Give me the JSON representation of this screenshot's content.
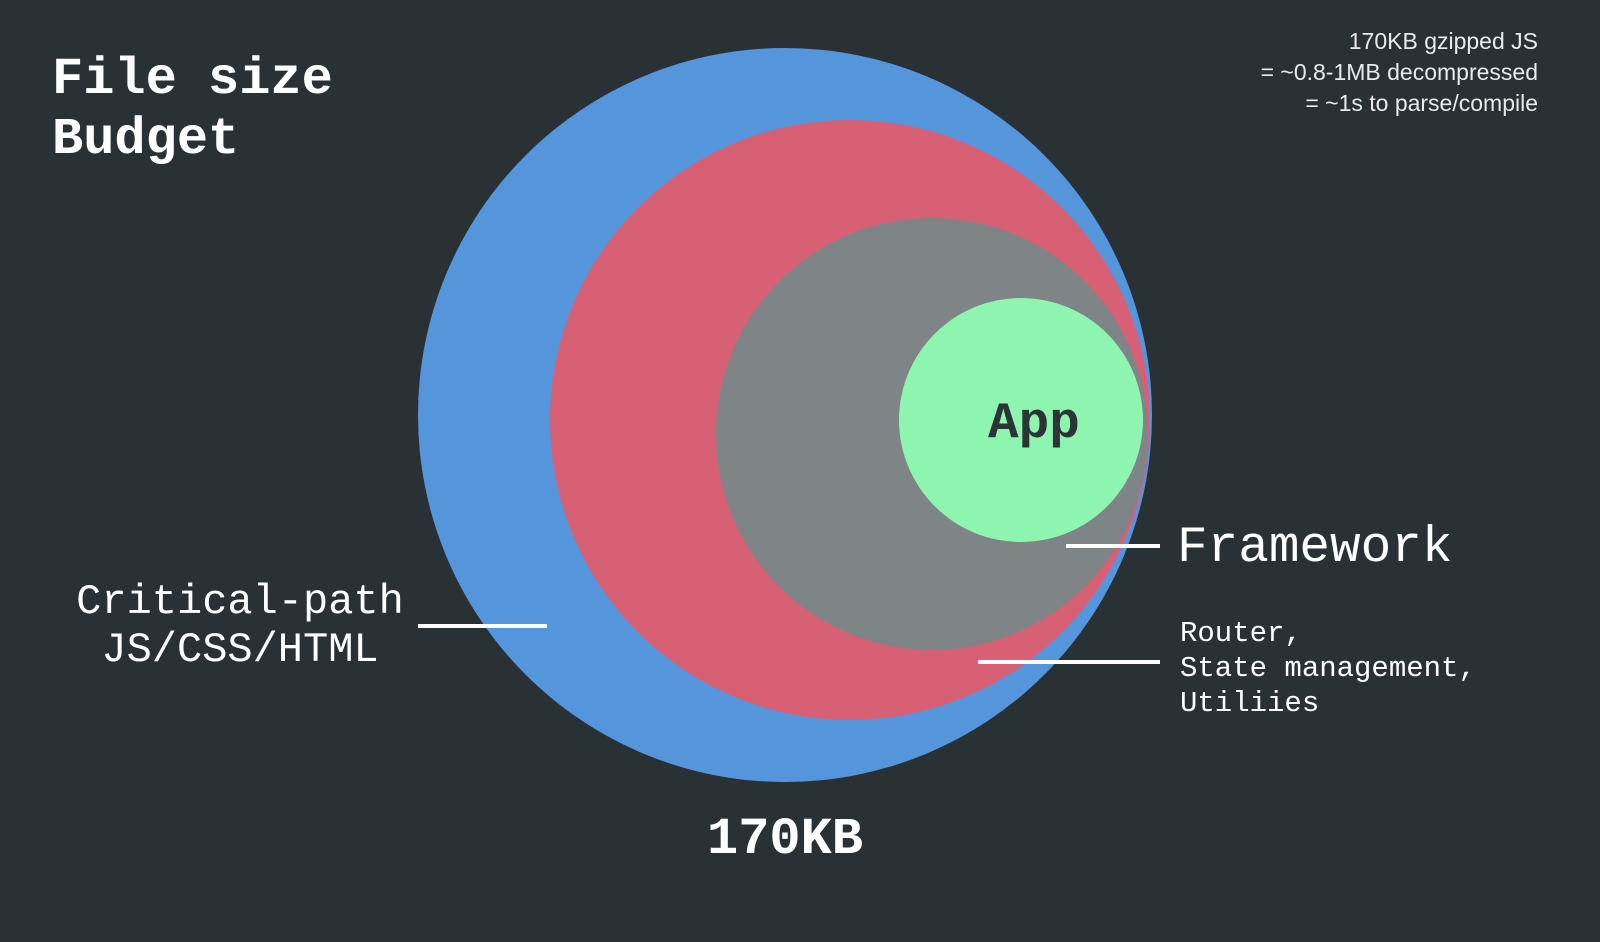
{
  "title": {
    "line1": "File size",
    "line2": "Budget"
  },
  "note": {
    "line1": "170KB gzipped JS",
    "line2": "= ~0.8-1MB decompressed",
    "line3": "= ~1s to parse/compile"
  },
  "layers": [
    {
      "label_line1": "Critical-path",
      "label_line2": "JS/CSS/HTML",
      "color": "#5595dc"
    },
    {
      "label_line1": "Router,",
      "label_line2": "State management,",
      "label_line3": "Utiliies",
      "color": "#d86075"
    },
    {
      "label": "Framework",
      "color": "#7f8486"
    },
    {
      "label": "App",
      "color": "#8ef5b0"
    }
  ],
  "total": "170KB"
}
